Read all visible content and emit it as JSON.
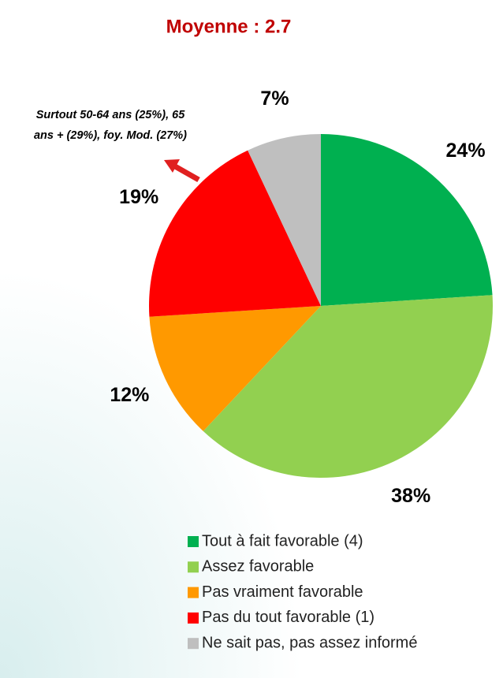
{
  "chart_data": {
    "type": "pie",
    "title": "Moyenne : 2.7",
    "annotation_lines": [
      "Surtout 50-64 ans (25%), 65",
      "ans + (29%), foy. Mod. (27%)"
    ],
    "categories": [
      "Tout à fait favorable (4)",
      "Assez favorable",
      "Pas vraiment favorable",
      "Pas du tout favorable (1)",
      "Ne sait pas, pas assez informé"
    ],
    "values": [
      24,
      38,
      12,
      19,
      7
    ],
    "value_labels": [
      "24%",
      "38%",
      "12%",
      "19%",
      "7%"
    ],
    "colors": [
      "#00b050",
      "#92d050",
      "#ff9900",
      "#ff0000",
      "#bfbfbf"
    ]
  }
}
